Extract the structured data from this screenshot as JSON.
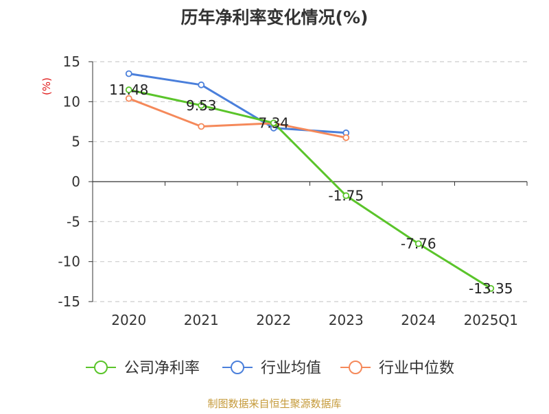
{
  "chart_data": {
    "type": "line",
    "title": "历年净利率变化情况(%)",
    "ylabel": "(%)",
    "xlabel": "",
    "categories": [
      "2020",
      "2021",
      "2022",
      "2023",
      "2024",
      "2025Q1"
    ],
    "ylim": [
      -15,
      15
    ],
    "yticks": [
      15,
      10,
      5,
      0,
      -5,
      -10,
      -15
    ],
    "grid": true,
    "legend_position": "bottom",
    "series": [
      {
        "name": "公司净利率",
        "color": "#5ac42a",
        "values": [
          11.48,
          9.53,
          7.34,
          -1.75,
          -7.76,
          -13.35
        ],
        "labels": [
          "11.48",
          "9.53",
          "7.34",
          "-1.75",
          "-7.76",
          "-13.35"
        ]
      },
      {
        "name": "行业均值",
        "color": "#4a7fdb",
        "values": [
          13.5,
          12.1,
          6.7,
          6.1,
          null,
          null
        ]
      },
      {
        "name": "行业中位数",
        "color": "#f5895a",
        "values": [
          10.4,
          6.9,
          7.3,
          5.5,
          null,
          null
        ]
      }
    ]
  },
  "footer": {
    "source": "制图数据来自恒生聚源数据库",
    "color": "#c59a3a"
  }
}
